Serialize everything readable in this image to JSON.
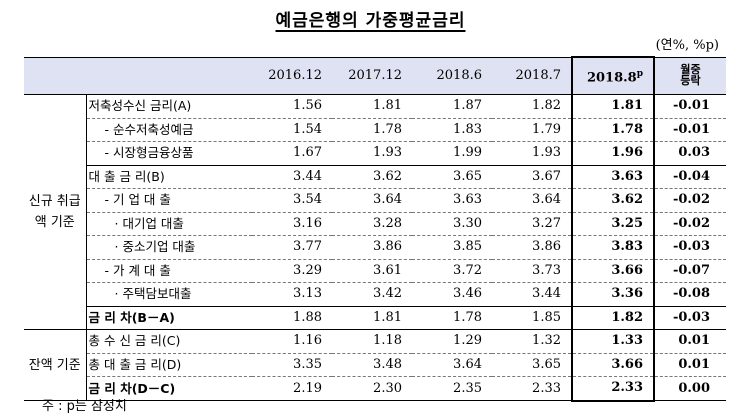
{
  "title": "예금은행의 가중평균금리",
  "unit": "(연%, %p)",
  "columns": [
    "2016.12",
    "2017.12",
    "2018.6",
    "2018.7",
    "2018.8",
    "월중 등락"
  ],
  "p_superscript": "p",
  "groups": {
    "new": "신규 취급액 기준",
    "balance": "잔액 기준"
  },
  "rows": [
    {
      "label": "저축성수신 금리(A)",
      "values": [
        "1.56",
        "1.81",
        "1.87",
        "1.82",
        "1.81",
        "-0.01"
      ]
    },
    {
      "label": "- 순수저축성예금",
      "values": [
        "1.54",
        "1.78",
        "1.83",
        "1.79",
        "1.78",
        "-0.01"
      ]
    },
    {
      "label": "- 시장형금융상품",
      "values": [
        "1.67",
        "1.93",
        "1.99",
        "1.93",
        "1.96",
        "0.03"
      ]
    },
    {
      "label": "대 출 금 리(B)",
      "values": [
        "3.44",
        "3.62",
        "3.65",
        "3.67",
        "3.63",
        "-0.04"
      ]
    },
    {
      "label": "- 기 업 대 출",
      "values": [
        "3.54",
        "3.64",
        "3.63",
        "3.64",
        "3.62",
        "-0.02"
      ]
    },
    {
      "label": "· 대기업 대출",
      "values": [
        "3.16",
        "3.28",
        "3.30",
        "3.27",
        "3.25",
        "-0.02"
      ]
    },
    {
      "label": "· 중소기업 대출",
      "values": [
        "3.77",
        "3.86",
        "3.85",
        "3.86",
        "3.83",
        "-0.03"
      ]
    },
    {
      "label": "- 가 계 대 출",
      "values": [
        "3.29",
        "3.61",
        "3.72",
        "3.73",
        "3.66",
        "-0.07"
      ]
    },
    {
      "label": "· 주택담보대출",
      "values": [
        "3.13",
        "3.42",
        "3.46",
        "3.44",
        "3.36",
        "-0.08"
      ]
    },
    {
      "label": "금 리 차(B－A)",
      "values": [
        "1.88",
        "1.81",
        "1.78",
        "1.85",
        "1.82",
        "-0.03"
      ]
    },
    {
      "label": "총 수 신 금 리(C)",
      "values": [
        "1.16",
        "1.18",
        "1.29",
        "1.32",
        "1.33",
        "0.01"
      ]
    },
    {
      "label": "총 대 출 금 리(D)",
      "values": [
        "3.35",
        "3.48",
        "3.64",
        "3.65",
        "3.66",
        "0.01"
      ]
    },
    {
      "label": "금 리 차(D－C)",
      "values": [
        "2.19",
        "2.30",
        "2.35",
        "2.33",
        "2.33",
        "0.00"
      ]
    }
  ],
  "note": "주 : p는 잠정치"
}
